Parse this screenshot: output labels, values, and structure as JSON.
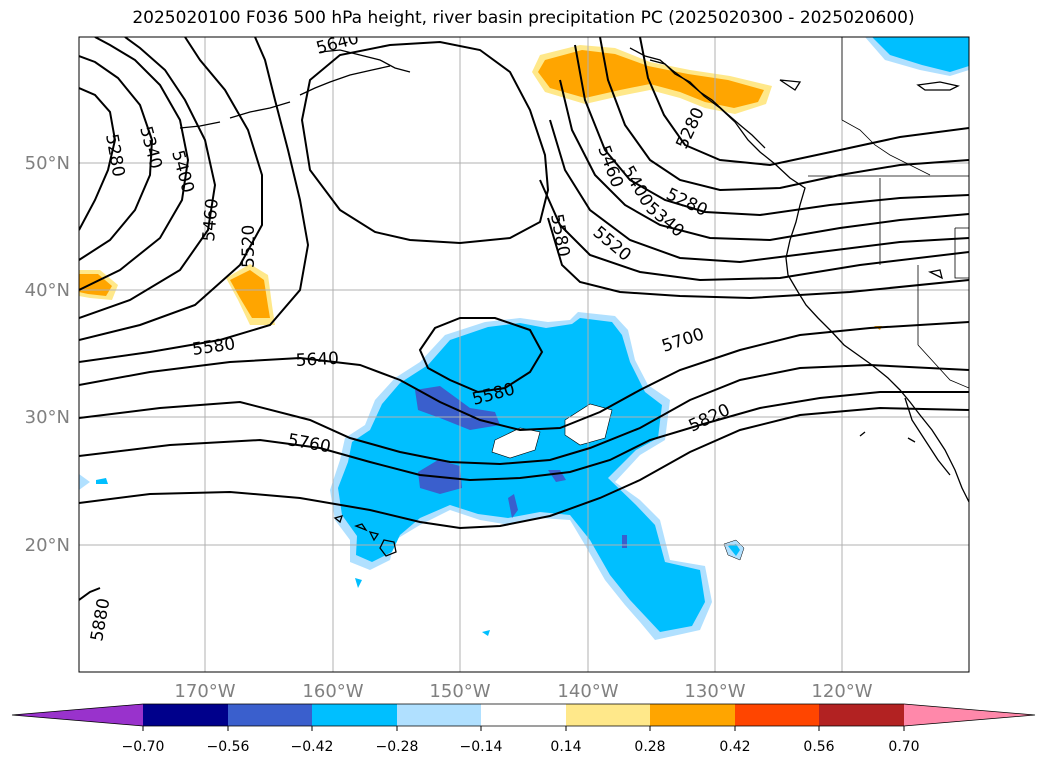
{
  "title": "2025020100 F036 500 hPa height, river basin precipitation PC (2025020300 - 2025020600)",
  "lat_labels": [
    "50°N",
    "40°N",
    "30°N",
    "20°N"
  ],
  "lon_labels": [
    "170°W",
    "160°W",
    "150°W",
    "140°W",
    "130°W",
    "120°W"
  ],
  "contour_labels": [
    "5280",
    "5340",
    "5400",
    "5460",
    "5520",
    "5580",
    "5640",
    "5700",
    "5760",
    "5820",
    "5880",
    "5280",
    "5340",
    "5400",
    "5460",
    "5520",
    "5580",
    "5580",
    "5640",
    "5280"
  ],
  "colorbar": {
    "ticks": [
      "−0.70",
      "−0.56",
      "−0.42",
      "−0.28",
      "−0.14",
      "0.14",
      "0.28",
      "0.42",
      "0.56",
      "0.70"
    ],
    "colors": [
      "#9932cc",
      "#00008b",
      "#3a5fcd",
      "#00bfff",
      "#b0e0ff",
      "#ffffff",
      "#ffe88a",
      "#ffa500",
      "#ff4500",
      "#b22222",
      "#ff88aa"
    ]
  },
  "fill_colors": {
    "light_blue": "#b0e0ff",
    "blue": "#00bfff",
    "dark_blue": "#3a5fcd",
    "light_orange": "#ffe88a",
    "orange": "#ffa500"
  }
}
